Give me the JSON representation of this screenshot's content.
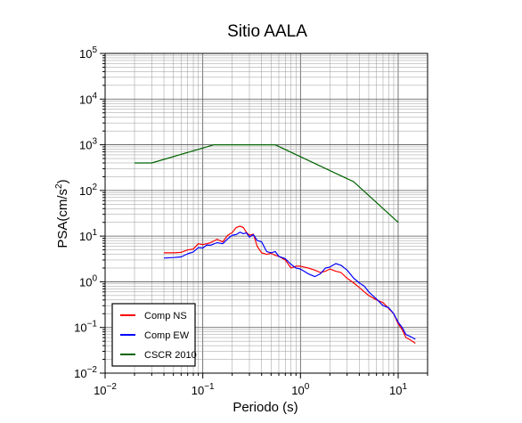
{
  "chart_data": {
    "type": "line",
    "title": "Sitio AALA",
    "xlabel": "Periodo (s)",
    "ylabel_parts": [
      "PSA(cm/s",
      "2",
      ")"
    ],
    "xscale": "log",
    "yscale": "log",
    "xlim": [
      0.01,
      20
    ],
    "ylim": [
      0.01,
      100000
    ],
    "grid": true,
    "legend_position": "bottom-left",
    "x_ticks": [
      {
        "base": "10",
        "exp": "−2",
        "value": 0.01
      },
      {
        "base": "10",
        "exp": "−1",
        "value": 0.1
      },
      {
        "base": "10",
        "exp": "0",
        "value": 1
      },
      {
        "base": "10",
        "exp": "1",
        "value": 10
      }
    ],
    "y_ticks": [
      {
        "base": "10",
        "exp": "−2",
        "value": 0.01
      },
      {
        "base": "10",
        "exp": "−1",
        "value": 0.1
      },
      {
        "base": "10",
        "exp": "0",
        "value": 1
      },
      {
        "base": "10",
        "exp": "1",
        "value": 10
      },
      {
        "base": "10",
        "exp": "2",
        "value": 100
      },
      {
        "base": "10",
        "exp": "3",
        "value": 1000
      },
      {
        "base": "10",
        "exp": "4",
        "value": 10000
      },
      {
        "base": "10",
        "exp": "5",
        "value": 100000
      }
    ],
    "series": [
      {
        "name": "Comp NS",
        "color": "#ff0000",
        "points": [
          [
            0.04,
            4.3
          ],
          [
            0.05,
            4.3
          ],
          [
            0.06,
            4.4
          ],
          [
            0.07,
            5
          ],
          [
            0.08,
            5.2
          ],
          [
            0.09,
            6.8
          ],
          [
            0.1,
            6.5
          ],
          [
            0.11,
            6.8
          ],
          [
            0.12,
            7.2
          ],
          [
            0.14,
            8.5
          ],
          [
            0.16,
            7.5
          ],
          [
            0.18,
            10.5
          ],
          [
            0.2,
            12
          ],
          [
            0.22,
            15.5
          ],
          [
            0.24,
            16.5
          ],
          [
            0.26,
            15.5
          ],
          [
            0.28,
            12
          ],
          [
            0.3,
            10.5
          ],
          [
            0.33,
            11
          ],
          [
            0.36,
            6
          ],
          [
            0.4,
            4.3
          ],
          [
            0.45,
            4.0
          ],
          [
            0.5,
            4.2
          ],
          [
            0.55,
            3.8
          ],
          [
            0.6,
            3.6
          ],
          [
            0.7,
            3.0
          ],
          [
            0.8,
            2.0
          ],
          [
            0.9,
            2.2
          ],
          [
            1.0,
            2.2
          ],
          [
            1.2,
            2.0
          ],
          [
            1.4,
            1.8
          ],
          [
            1.6,
            1.6
          ],
          [
            1.8,
            1.7
          ],
          [
            2.0,
            1.9
          ],
          [
            2.3,
            1.7
          ],
          [
            2.6,
            1.6
          ],
          [
            3.0,
            1.2
          ],
          [
            3.5,
            0.95
          ],
          [
            4.0,
            0.75
          ],
          [
            4.5,
            0.6
          ],
          [
            5.0,
            0.5
          ],
          [
            6.0,
            0.4
          ],
          [
            7.0,
            0.35
          ],
          [
            8.0,
            0.26
          ],
          [
            9.0,
            0.2
          ],
          [
            10.0,
            0.12
          ],
          [
            11.0,
            0.09
          ],
          [
            12.0,
            0.06
          ],
          [
            13.0,
            0.055
          ],
          [
            14.0,
            0.05
          ],
          [
            15.0,
            0.045
          ]
        ]
      },
      {
        "name": "Comp EW",
        "color": "#0000ff",
        "points": [
          [
            0.04,
            3.3
          ],
          [
            0.05,
            3.4
          ],
          [
            0.06,
            3.5
          ],
          [
            0.07,
            4.1
          ],
          [
            0.08,
            4.5
          ],
          [
            0.09,
            5.6
          ],
          [
            0.1,
            5.5
          ],
          [
            0.11,
            6.4
          ],
          [
            0.12,
            6.3
          ],
          [
            0.14,
            7.2
          ],
          [
            0.16,
            6.8
          ],
          [
            0.18,
            8.7
          ],
          [
            0.2,
            10.5
          ],
          [
            0.22,
            10.8
          ],
          [
            0.24,
            12.2
          ],
          [
            0.26,
            11.3
          ],
          [
            0.28,
            11.8
          ],
          [
            0.3,
            9.5
          ],
          [
            0.33,
            10.8
          ],
          [
            0.36,
            8
          ],
          [
            0.4,
            7.5
          ],
          [
            0.45,
            4.6
          ],
          [
            0.5,
            4.3
          ],
          [
            0.55,
            4.6
          ],
          [
            0.6,
            3.6
          ],
          [
            0.7,
            3.2
          ],
          [
            0.8,
            2.4
          ],
          [
            0.9,
            2.0
          ],
          [
            1.0,
            1.9
          ],
          [
            1.2,
            1.5
          ],
          [
            1.4,
            1.3
          ],
          [
            1.6,
            1.5
          ],
          [
            1.8,
            2.0
          ],
          [
            2.0,
            2.1
          ],
          [
            2.3,
            2.5
          ],
          [
            2.6,
            2.3
          ],
          [
            3.0,
            1.8
          ],
          [
            3.5,
            1.2
          ],
          [
            4.0,
            0.95
          ],
          [
            4.5,
            0.8
          ],
          [
            5.0,
            0.6
          ],
          [
            6.0,
            0.42
          ],
          [
            7.0,
            0.3
          ],
          [
            8.0,
            0.27
          ],
          [
            9.0,
            0.2
          ],
          [
            10.0,
            0.13
          ],
          [
            11.0,
            0.1
          ],
          [
            12.0,
            0.07
          ],
          [
            13.0,
            0.065
          ],
          [
            14.0,
            0.06
          ],
          [
            15.0,
            0.055
          ]
        ]
      },
      {
        "name": "CSCR 2010",
        "color": "#006400",
        "points": [
          [
            0.02,
            400
          ],
          [
            0.03,
            400
          ],
          [
            0.13,
            1000
          ],
          [
            0.55,
            1000
          ],
          [
            3.5,
            155
          ],
          [
            10,
            20
          ]
        ]
      }
    ]
  }
}
